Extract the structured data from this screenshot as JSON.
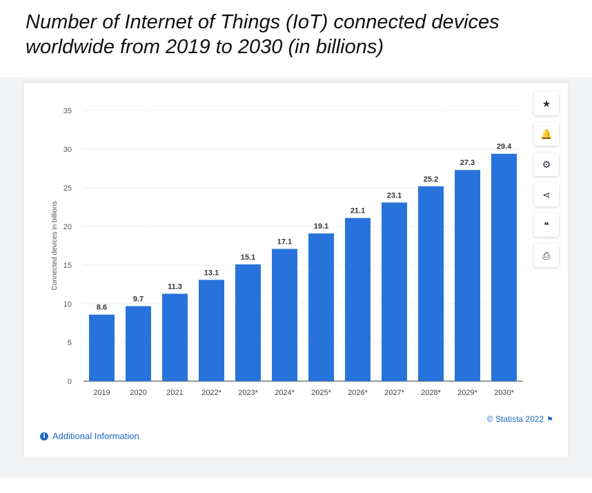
{
  "page": {
    "title": "Number of Internet of Things (IoT) connected devices worldwide from 2019 to 2030 (in billions)"
  },
  "toolbar": {
    "buttons": [
      {
        "icon": "star-icon",
        "glyph": "★"
      },
      {
        "icon": "bell-icon",
        "glyph": "🔔"
      },
      {
        "icon": "gear-icon",
        "glyph": "⚙"
      },
      {
        "icon": "share-icon",
        "glyph": "⋖"
      },
      {
        "icon": "quote-icon",
        "glyph": "❝"
      },
      {
        "icon": "print-icon",
        "glyph": "⎙"
      }
    ]
  },
  "footer": {
    "credit": "© Statista 2022",
    "additional_info": "Additional Information"
  },
  "colors": {
    "bar": "#2873db",
    "accent": "#1f68c2"
  },
  "chart_data": {
    "type": "bar",
    "title": "",
    "xlabel": "",
    "ylabel": "Connected devices in billions",
    "categories": [
      "2019",
      "2020",
      "2021",
      "2022*",
      "2023*",
      "2024*",
      "2025*",
      "2026*",
      "2027*",
      "2028*",
      "2029*",
      "2030*"
    ],
    "values": [
      8.6,
      9.7,
      11.3,
      13.1,
      15.1,
      17.1,
      19.1,
      21.1,
      23.1,
      25.2,
      27.3,
      29.4
    ],
    "ylim": [
      0,
      35
    ],
    "yticks": [
      0,
      5,
      10,
      15,
      20,
      25,
      30,
      35
    ],
    "grid": true,
    "data_labels": true
  }
}
